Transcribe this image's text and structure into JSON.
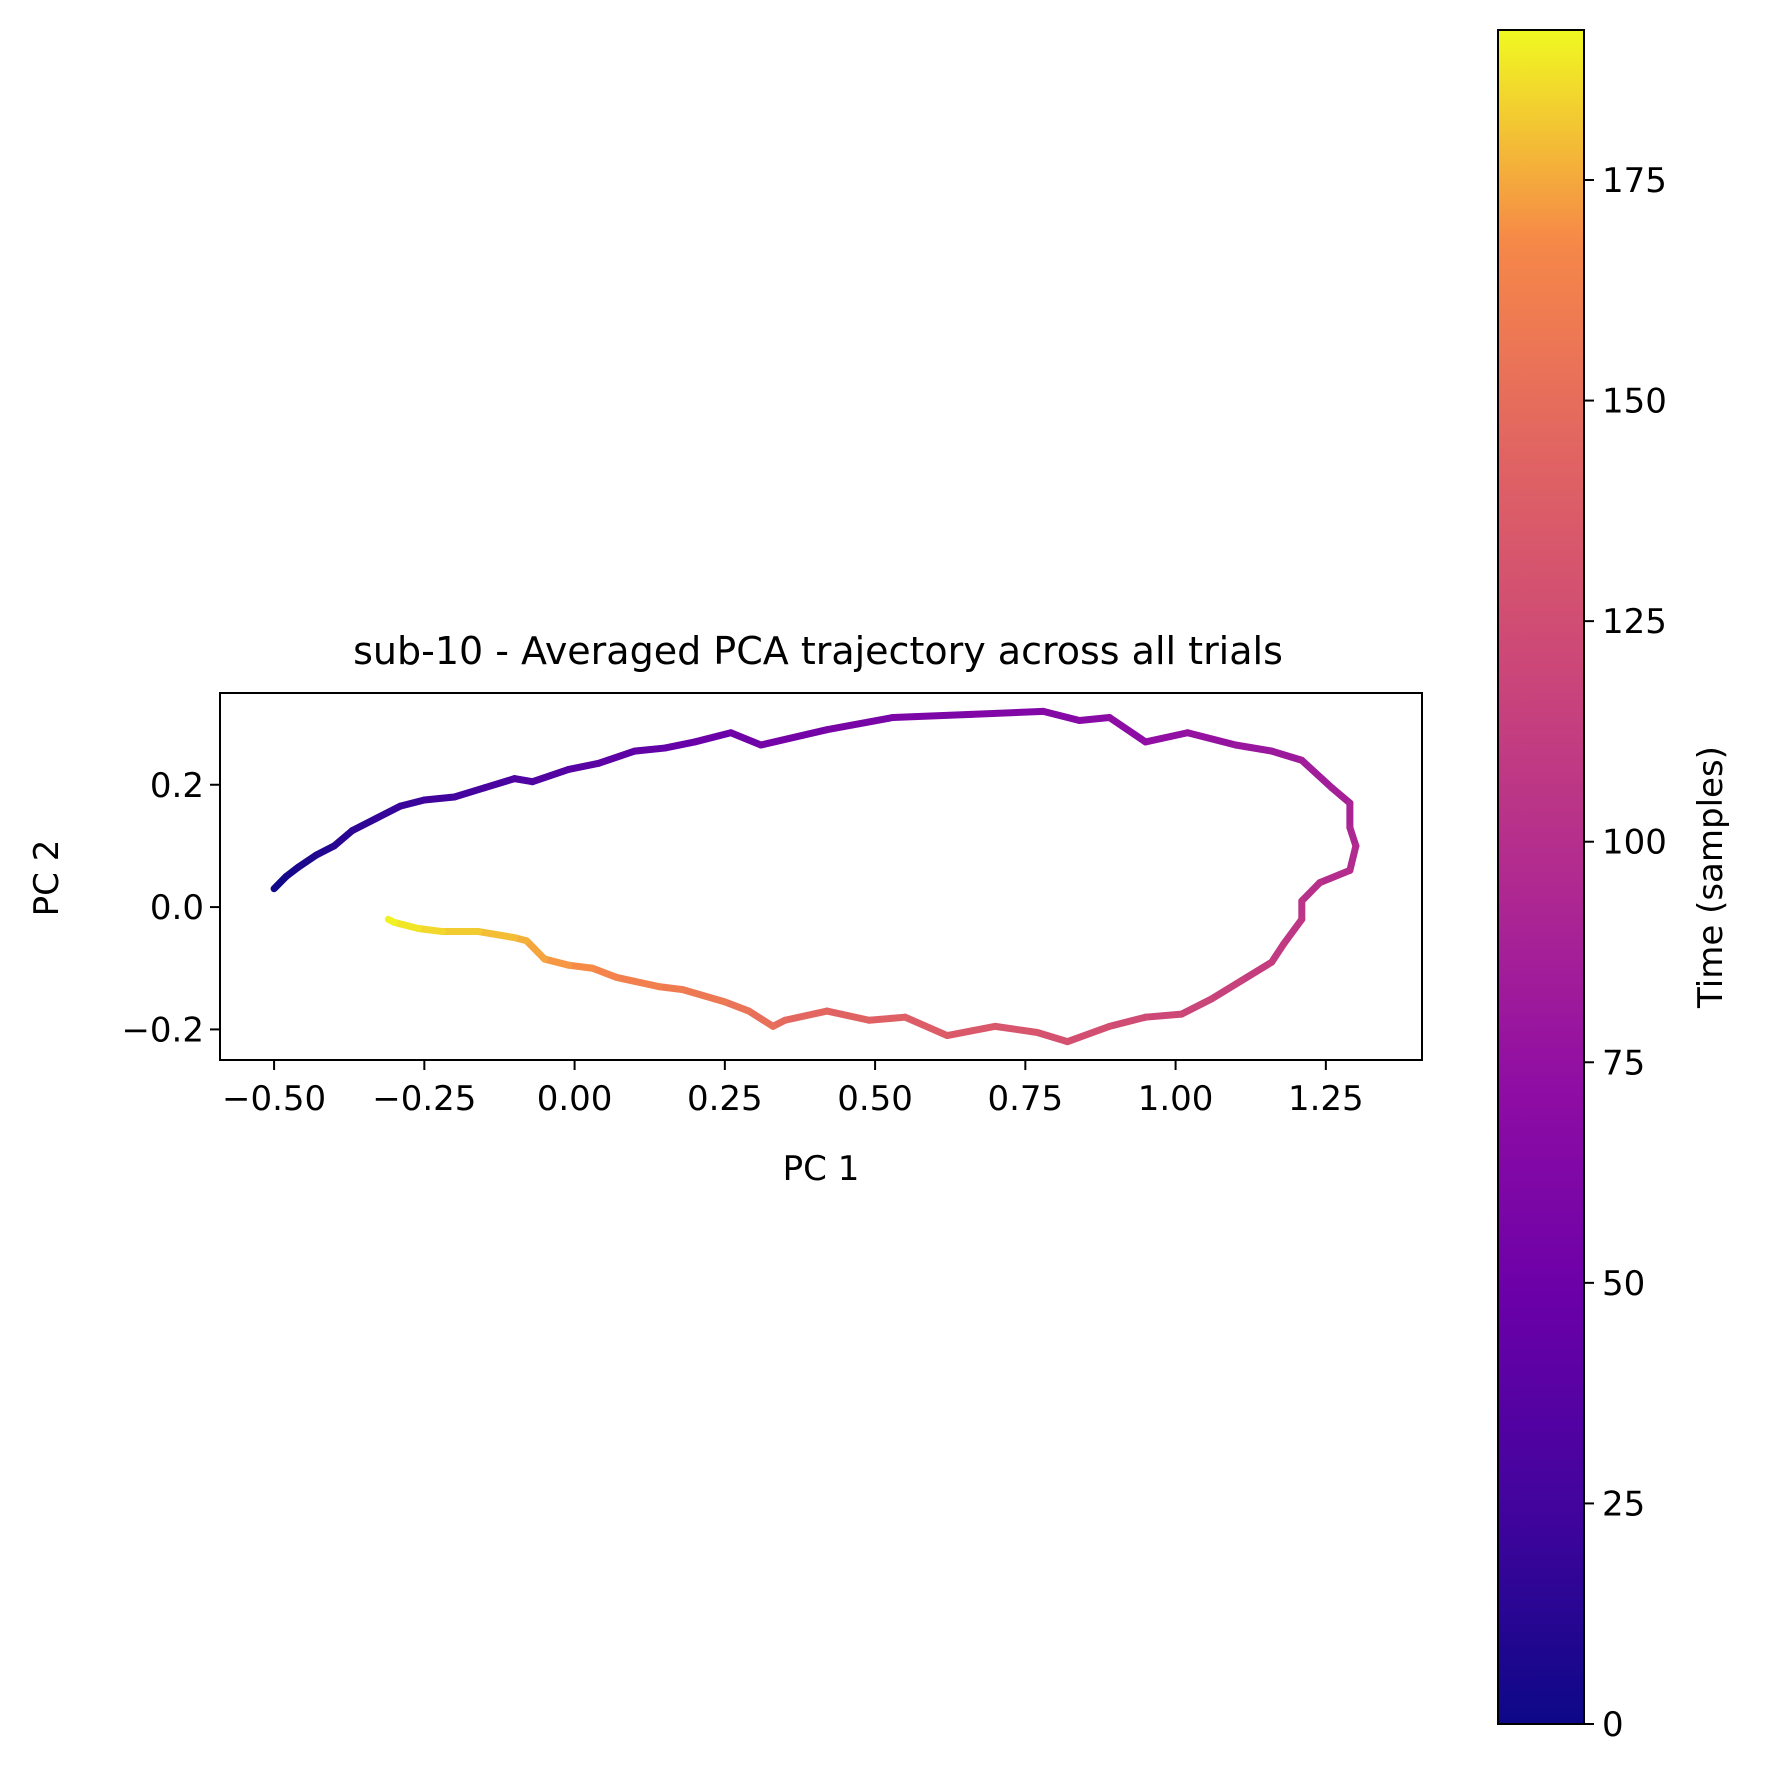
{
  "chart_data": {
    "type": "line",
    "title": "sub-10 - Averaged PCA trajectory across all trials",
    "xlabel": "PC 1",
    "ylabel": "PC 2",
    "xlim": [
      -0.59,
      1.41
    ],
    "ylim": [
      -0.25,
      0.35
    ],
    "xticks": [
      -0.5,
      -0.25,
      0.0,
      0.25,
      0.5,
      0.75,
      1.0,
      1.25
    ],
    "xtick_labels": [
      "−0.50",
      "−0.25",
      "0.00",
      "0.25",
      "0.50",
      "0.75",
      "1.00",
      "1.25"
    ],
    "yticks": [
      -0.2,
      0.0,
      0.2
    ],
    "ytick_labels": [
      "−0.2",
      "0.0",
      "0.2"
    ],
    "grid": false,
    "colormap": "plasma",
    "colorbar": {
      "label": "Time (samples)",
      "range": [
        0,
        192
      ],
      "ticks": [
        0,
        25,
        50,
        75,
        100,
        125,
        150,
        175
      ],
      "tick_labels": [
        "0",
        "25",
        "50",
        "75",
        "100",
        "125",
        "150",
        "175"
      ]
    },
    "series": [
      {
        "color_by": "time",
        "t_range": [
          0,
          192
        ],
        "points": [
          [
            -0.5,
            0.03
          ],
          [
            -0.48,
            0.05
          ],
          [
            -0.46,
            0.065
          ],
          [
            -0.43,
            0.085
          ],
          [
            -0.4,
            0.1
          ],
          [
            -0.37,
            0.125
          ],
          [
            -0.33,
            0.145
          ],
          [
            -0.29,
            0.165
          ],
          [
            -0.25,
            0.175
          ],
          [
            -0.2,
            0.18
          ],
          [
            -0.15,
            0.195
          ],
          [
            -0.1,
            0.21
          ],
          [
            -0.07,
            0.205
          ],
          [
            -0.01,
            0.225
          ],
          [
            0.04,
            0.235
          ],
          [
            0.1,
            0.255
          ],
          [
            0.15,
            0.26
          ],
          [
            0.2,
            0.27
          ],
          [
            0.26,
            0.285
          ],
          [
            0.31,
            0.265
          ],
          [
            0.42,
            0.29
          ],
          [
            0.53,
            0.31
          ],
          [
            0.66,
            0.315
          ],
          [
            0.78,
            0.32
          ],
          [
            0.84,
            0.305
          ],
          [
            0.89,
            0.31
          ],
          [
            0.95,
            0.27
          ],
          [
            1.02,
            0.285
          ],
          [
            1.1,
            0.265
          ],
          [
            1.16,
            0.255
          ],
          [
            1.21,
            0.24
          ],
          [
            1.26,
            0.195
          ],
          [
            1.29,
            0.17
          ],
          [
            1.29,
            0.13
          ],
          [
            1.3,
            0.1
          ],
          [
            1.29,
            0.06
          ],
          [
            1.24,
            0.04
          ],
          [
            1.21,
            0.01
          ],
          [
            1.21,
            -0.02
          ],
          [
            1.18,
            -0.06
          ],
          [
            1.16,
            -0.09
          ],
          [
            1.11,
            -0.12
          ],
          [
            1.06,
            -0.15
          ],
          [
            1.01,
            -0.175
          ],
          [
            0.95,
            -0.18
          ],
          [
            0.89,
            -0.195
          ],
          [
            0.82,
            -0.22
          ],
          [
            0.77,
            -0.205
          ],
          [
            0.7,
            -0.195
          ],
          [
            0.62,
            -0.21
          ],
          [
            0.55,
            -0.18
          ],
          [
            0.49,
            -0.185
          ],
          [
            0.42,
            -0.17
          ],
          [
            0.35,
            -0.185
          ],
          [
            0.33,
            -0.195
          ],
          [
            0.29,
            -0.17
          ],
          [
            0.25,
            -0.155
          ],
          [
            0.18,
            -0.135
          ],
          [
            0.14,
            -0.13
          ],
          [
            0.07,
            -0.115
          ],
          [
            0.03,
            -0.1
          ],
          [
            -0.01,
            -0.095
          ],
          [
            -0.05,
            -0.085
          ],
          [
            -0.08,
            -0.055
          ],
          [
            -0.1,
            -0.05
          ],
          [
            -0.16,
            -0.04
          ],
          [
            -0.22,
            -0.04
          ],
          [
            -0.26,
            -0.035
          ],
          [
            -0.3,
            -0.025
          ],
          [
            -0.31,
            -0.02
          ]
        ]
      }
    ]
  }
}
